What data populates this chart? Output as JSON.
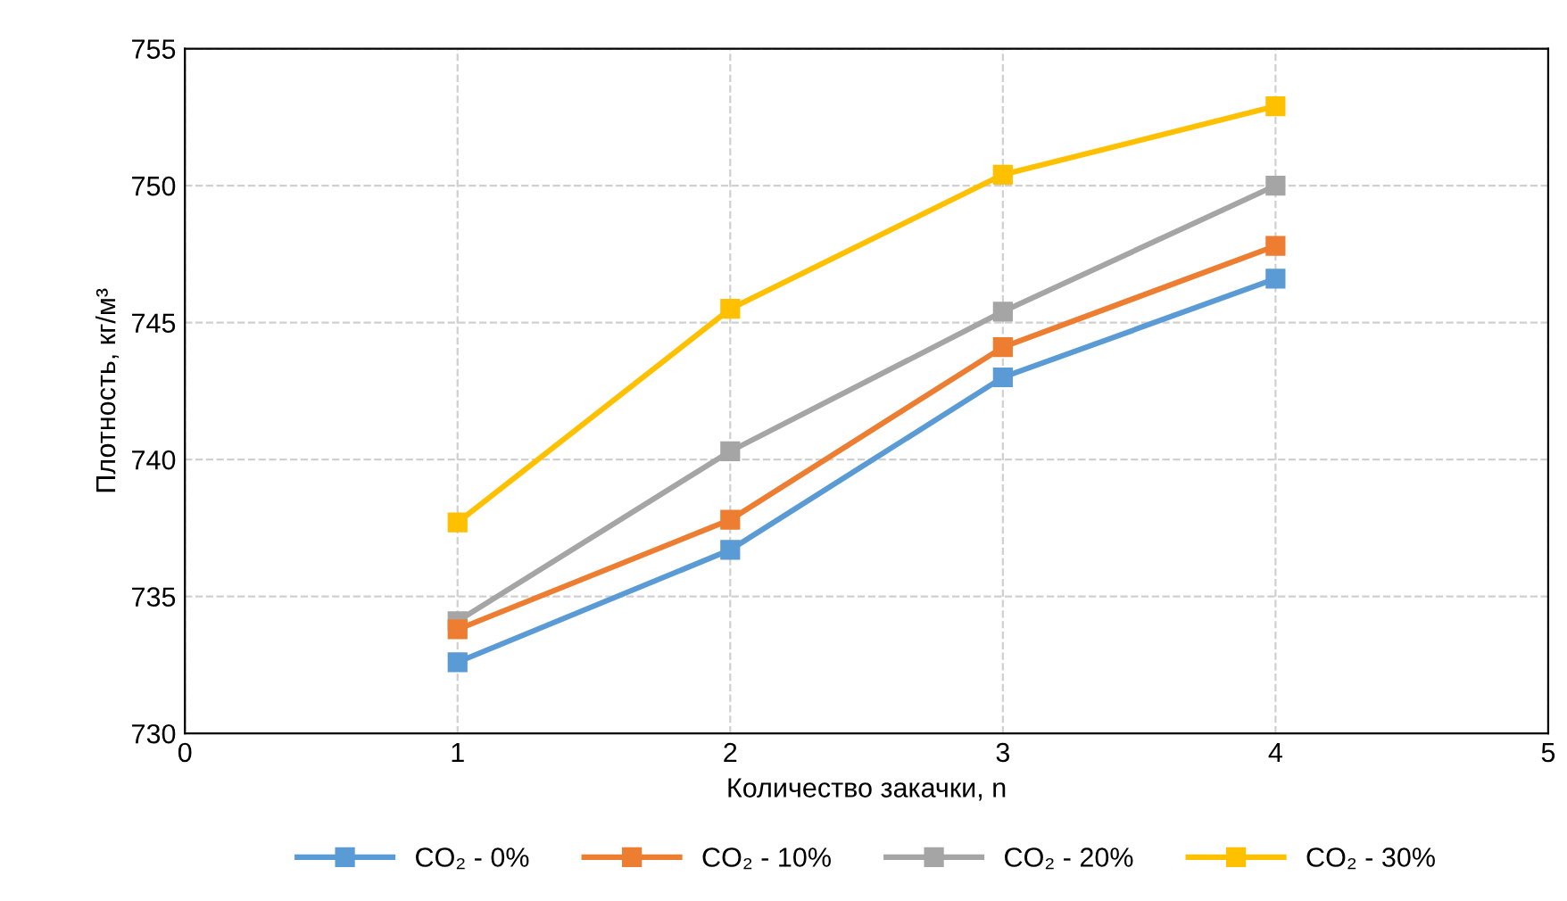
{
  "chart_data": {
    "type": "line",
    "xlabel": "Количество закачки, n",
    "ylabel": "Плотность, кг/м³",
    "x": [
      1,
      2,
      3,
      4
    ],
    "xlim": [
      0,
      5
    ],
    "xticks": [
      0,
      1,
      2,
      3,
      4,
      5
    ],
    "ylim": [
      730,
      755
    ],
    "yticks": [
      730,
      735,
      740,
      745,
      750,
      755
    ],
    "grid": true,
    "legend": "bottom",
    "marker": "square",
    "line_style": "solid",
    "series": [
      {
        "name": "CO₂ - 0%",
        "color": "#5b9bd5",
        "values": [
          732.6,
          736.7,
          743.0,
          746.6
        ]
      },
      {
        "name": "CO₂ - 10%",
        "color": "#ed7d31",
        "values": [
          733.8,
          737.8,
          744.1,
          747.8
        ]
      },
      {
        "name": "CO₂ - 20%",
        "color": "#a5a5a5",
        "values": [
          734.1,
          740.3,
          745.4,
          750.0
        ]
      },
      {
        "name": "CO₂ - 30%",
        "color": "#ffc000",
        "values": [
          737.7,
          745.5,
          750.4,
          752.9
        ]
      }
    ]
  }
}
